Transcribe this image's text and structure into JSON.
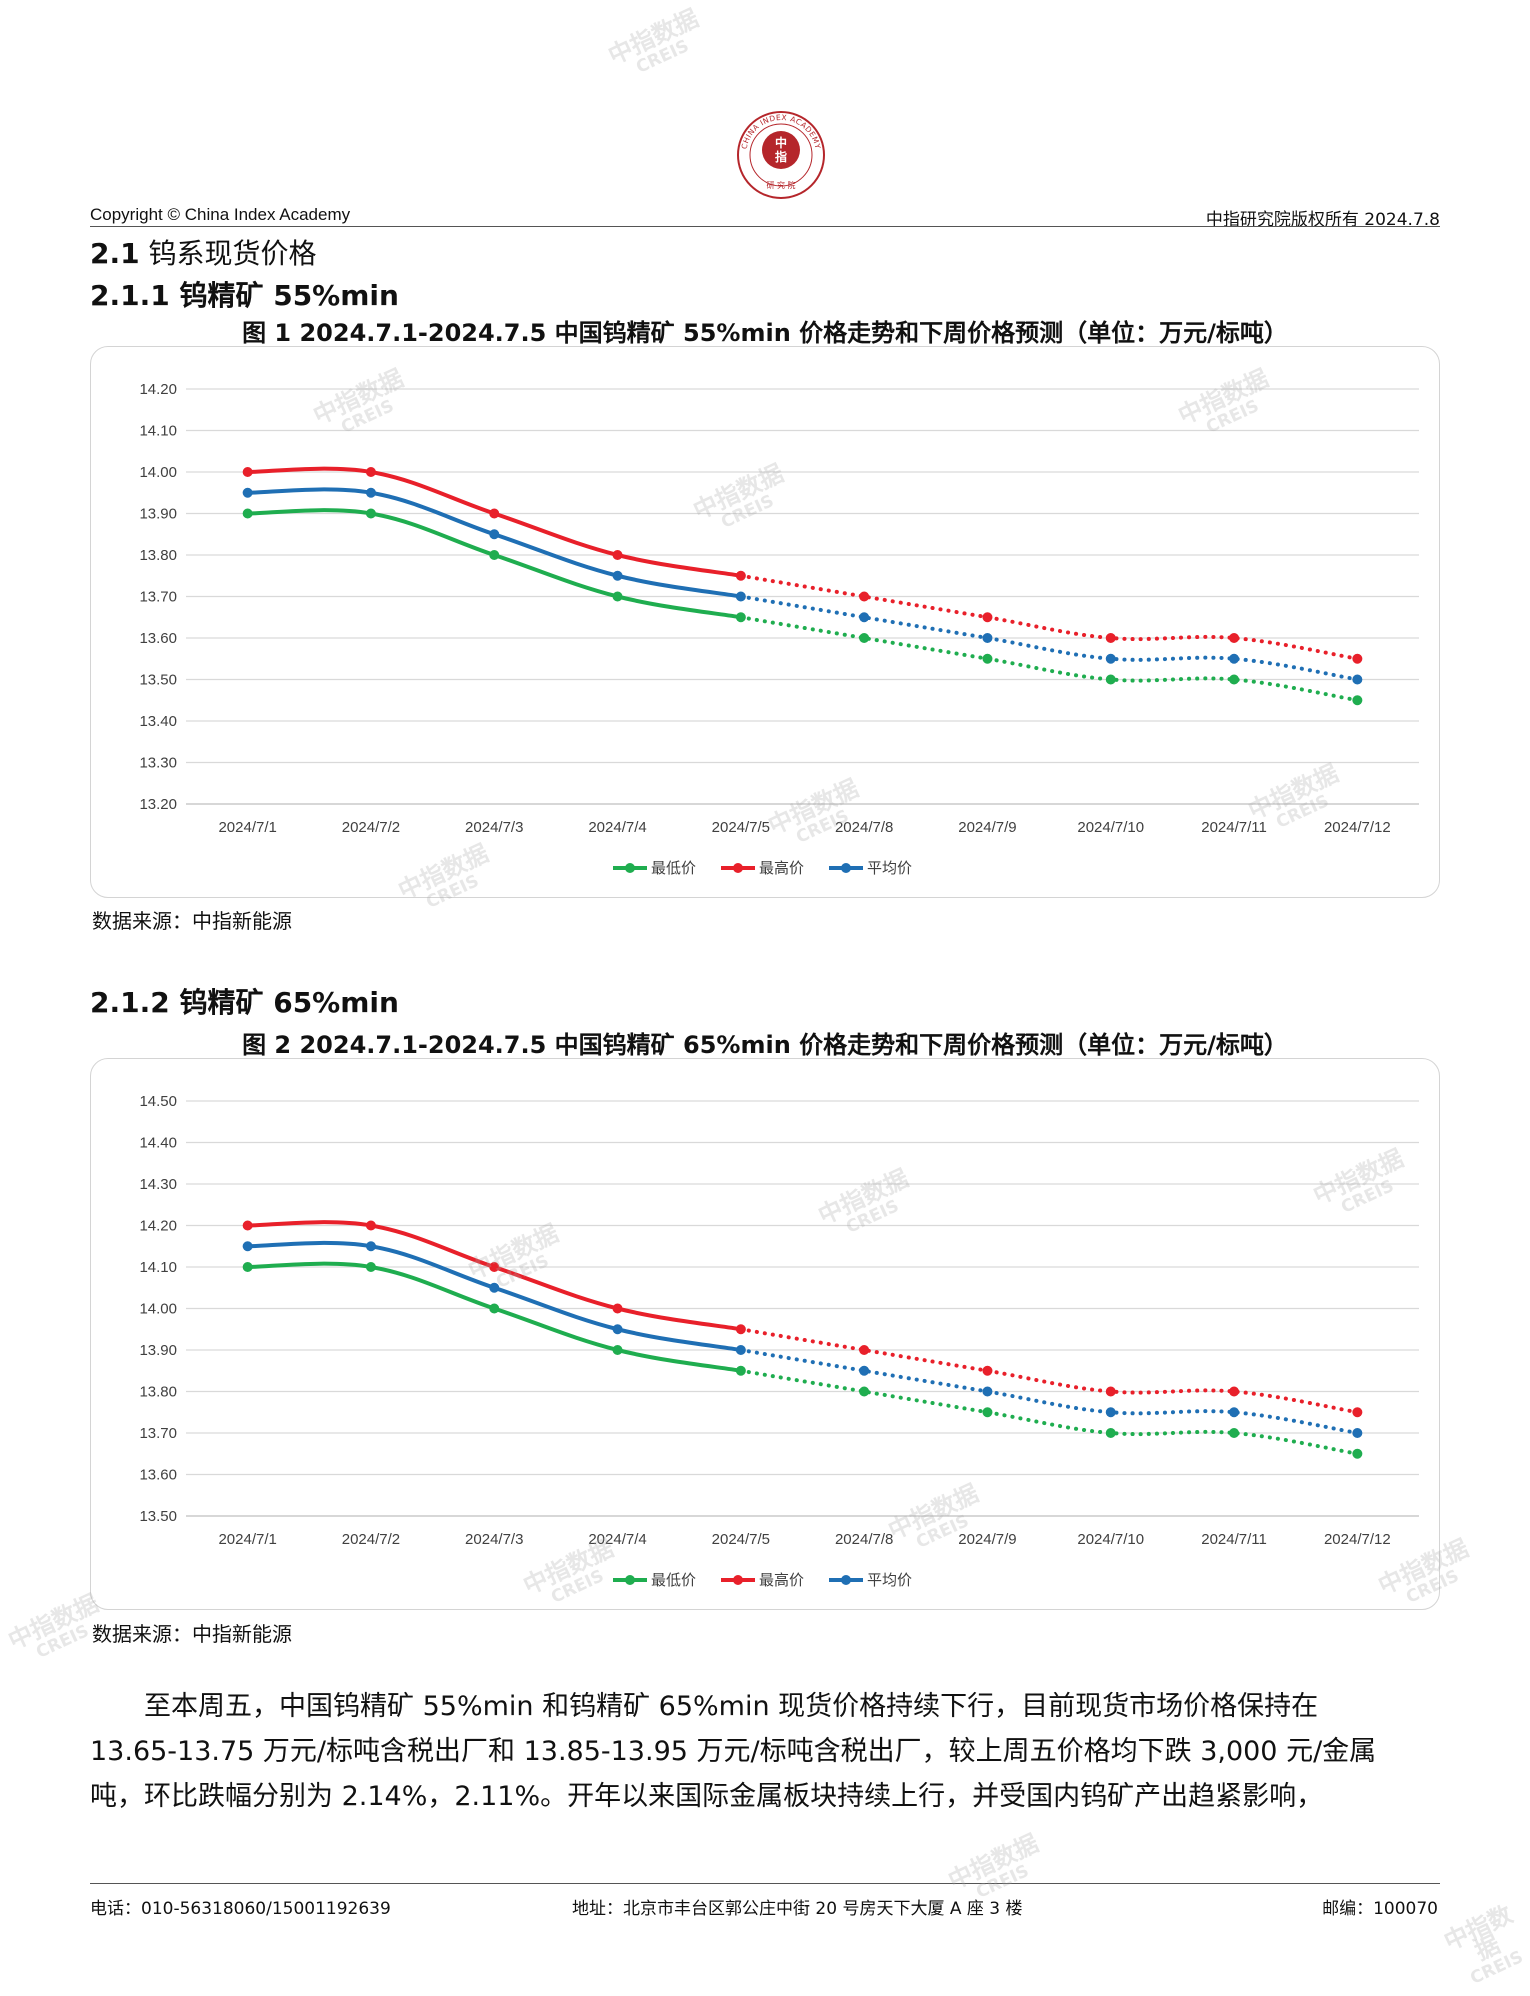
{
  "header": {
    "logo_text": "中指 · CHINA INDEX ACADEMY · 研究院",
    "left": "Copyright © China Index Academy",
    "right": "中指研究院版权所有 2024.7.8"
  },
  "section": {
    "num": "2.1",
    "title": "钨系现货价格"
  },
  "subsections": [
    {
      "title": "2.1.1 钨精矿 55%min"
    },
    {
      "title": "2.1.2 钨精矿 65%min"
    }
  ],
  "watermark": {
    "cn": "中指数据",
    "en": "CREIS"
  },
  "chart_data": [
    {
      "type": "line",
      "title": "图 1 2024.7.1-2024.7.5 中国钨精矿 55%min 价格走势和下周价格预测（单位：万元/标吨）",
      "categories": [
        "2024/7/1",
        "2024/7/2",
        "2024/7/3",
        "2024/7/4",
        "2024/7/5",
        "2024/7/8",
        "2024/7/9",
        "2024/7/10",
        "2024/7/11",
        "2024/7/12"
      ],
      "actual_count": 5,
      "yticks": [
        "14.20",
        "14.10",
        "14.00",
        "13.90",
        "13.80",
        "13.70",
        "13.60",
        "13.50",
        "13.40",
        "13.30",
        "13.20"
      ],
      "ylim": [
        13.2,
        14.2
      ],
      "grid": true,
      "legend_position": "bottom",
      "series": [
        {
          "name": "最低价",
          "color": "#1fad4f",
          "values": [
            13.9,
            13.9,
            13.8,
            13.7,
            13.65,
            13.6,
            13.55,
            13.5,
            13.5,
            13.45
          ]
        },
        {
          "name": "最高价",
          "color": "#e8202a",
          "values": [
            14.0,
            14.0,
            13.9,
            13.8,
            13.75,
            13.7,
            13.65,
            13.6,
            13.6,
            13.55
          ]
        },
        {
          "name": "平均价",
          "color": "#1f6fb4",
          "values": [
            13.95,
            13.95,
            13.85,
            13.75,
            13.7,
            13.65,
            13.6,
            13.55,
            13.55,
            13.5
          ]
        }
      ]
    },
    {
      "type": "line",
      "title": "图 2 2024.7.1-2024.7.5 中国钨精矿 65%min 价格走势和下周价格预测（单位：万元/标吨）",
      "categories": [
        "2024/7/1",
        "2024/7/2",
        "2024/7/3",
        "2024/7/4",
        "2024/7/5",
        "2024/7/8",
        "2024/7/9",
        "2024/7/10",
        "2024/7/11",
        "2024/7/12"
      ],
      "actual_count": 5,
      "yticks": [
        "14.50",
        "14.40",
        "14.30",
        "14.20",
        "14.10",
        "14.00",
        "13.90",
        "13.80",
        "13.70",
        "13.60",
        "13.50"
      ],
      "ylim": [
        13.5,
        14.5
      ],
      "grid": true,
      "legend_position": "bottom",
      "series": [
        {
          "name": "最低价",
          "color": "#1fad4f",
          "values": [
            14.1,
            14.1,
            14.0,
            13.9,
            13.85,
            13.8,
            13.75,
            13.7,
            13.7,
            13.65
          ]
        },
        {
          "name": "最高价",
          "color": "#e8202a",
          "values": [
            14.2,
            14.2,
            14.1,
            14.0,
            13.95,
            13.9,
            13.85,
            13.8,
            13.8,
            13.75
          ]
        },
        {
          "name": "平均价",
          "color": "#1f6fb4",
          "values": [
            14.15,
            14.15,
            14.05,
            13.95,
            13.9,
            13.85,
            13.8,
            13.75,
            13.75,
            13.7
          ]
        }
      ]
    }
  ],
  "sources": [
    "数据来源：中指新能源",
    "数据来源：中指新能源"
  ],
  "paragraph_lines": [
    "　　至本周五，中国钨精矿 55%min 和钨精矿 65%min 现货价格持续下行，目前现货市场价格保持在",
    "13.65-13.75 万元/标吨含税出厂和 13.85-13.95 万元/标吨含税出厂，较上周五价格均下跌 3,000 元/金属",
    "吨，环比跌幅分别为 2.14%，2.11%。开年以来国际金属板块持续上行，并受国内钨矿产出趋紧影响，"
  ],
  "footer": {
    "phone": "电话：010-56318060/15001192639",
    "address": "地址：北京市丰台区郭公庄中街 20 号房天下大厦 A 座 3 楼",
    "postcode": "邮编：100070"
  }
}
